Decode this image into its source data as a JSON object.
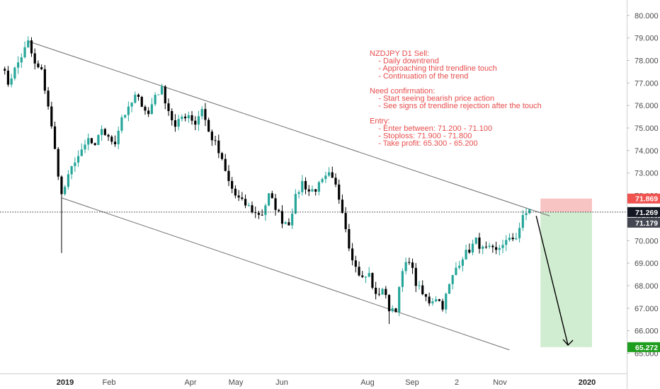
{
  "chart_data": {
    "type": "candlestick",
    "symbol": "NZDJPY",
    "timeframe": "D1",
    "x_tick_labels": [
      "2019",
      "Feb",
      "Apr",
      "May",
      "Jun",
      "Aug",
      "Sep",
      "2",
      "Nov",
      "2020"
    ],
    "y_tick_labels": [
      "65.000",
      "66.000",
      "67.000",
      "68.000",
      "69.000",
      "70.000",
      "71.000",
      "72.000",
      "73.000",
      "74.000",
      "75.000",
      "76.000",
      "77.000",
      "78.000",
      "79.000",
      "80.000"
    ],
    "ylim": [
      64.65,
      80.2
    ],
    "price_path": [
      [
        0,
        77.8
      ],
      [
        2,
        77.0
      ],
      [
        4,
        77.6
      ],
      [
        6,
        78.2
      ],
      [
        8,
        78.8
      ],
      [
        10,
        77.8
      ],
      [
        12,
        77.5
      ],
      [
        14,
        76.0
      ],
      [
        16,
        74.0
      ],
      [
        18,
        72.0
      ],
      [
        20,
        72.8
      ],
      [
        22,
        73.6
      ],
      [
        24,
        73.9
      ],
      [
        26,
        74.5
      ],
      [
        28,
        74.1
      ],
      [
        30,
        75.0
      ],
      [
        32,
        74.5
      ],
      [
        34,
        74.4
      ],
      [
        36,
        75.5
      ],
      [
        38,
        75.8
      ],
      [
        40,
        76.4
      ],
      [
        42,
        76.1
      ],
      [
        44,
        75.6
      ],
      [
        46,
        76.5
      ],
      [
        48,
        76.7
      ],
      [
        50,
        75.8
      ],
      [
        52,
        75.0
      ],
      [
        54,
        75.5
      ],
      [
        56,
        75.6
      ],
      [
        58,
        75.2
      ],
      [
        60,
        75.9
      ],
      [
        62,
        74.8
      ],
      [
        64,
        74.3
      ],
      [
        66,
        73.5
      ],
      [
        68,
        72.6
      ],
      [
        70,
        72.0
      ],
      [
        72,
        71.7
      ],
      [
        74,
        71.5
      ],
      [
        76,
        71.2
      ],
      [
        78,
        71.2
      ],
      [
        80,
        72.0
      ],
      [
        82,
        71.5
      ],
      [
        84,
        70.9
      ],
      [
        86,
        70.8
      ],
      [
        88,
        71.9
      ],
      [
        90,
        72.6
      ],
      [
        92,
        72.2
      ],
      [
        94,
        72.3
      ],
      [
        96,
        72.6
      ],
      [
        98,
        72.9
      ],
      [
        100,
        72.4
      ],
      [
        102,
        71.4
      ],
      [
        104,
        69.8
      ],
      [
        106,
        68.8
      ],
      [
        108,
        68.3
      ],
      [
        110,
        68.5
      ],
      [
        112,
        67.5
      ],
      [
        114,
        67.9
      ],
      [
        116,
        67.0
      ],
      [
        118,
        67.0
      ],
      [
        120,
        68.6
      ],
      [
        122,
        69.2
      ],
      [
        124,
        68.1
      ],
      [
        126,
        67.6
      ],
      [
        128,
        67.3
      ],
      [
        130,
        67.5
      ],
      [
        132,
        67.1
      ],
      [
        134,
        68.0
      ],
      [
        136,
        68.8
      ],
      [
        138,
        69.3
      ],
      [
        140,
        69.6
      ],
      [
        142,
        70.0
      ],
      [
        144,
        69.6
      ],
      [
        146,
        69.6
      ],
      [
        148,
        69.5
      ],
      [
        150,
        69.9
      ],
      [
        152,
        70.0
      ],
      [
        154,
        70.2
      ],
      [
        156,
        71.0
      ],
      [
        158,
        71.4
      ]
    ],
    "wicks": [
      {
        "bar": 18,
        "high": 72.0,
        "low": 69.45
      },
      {
        "bar": 116,
        "high": 67.0,
        "low": 66.3
      }
    ],
    "trendlines": [
      {
        "name": "upper",
        "from": [
          8,
          78.85
        ],
        "to": [
          164,
          71.1
        ]
      },
      {
        "name": "lower",
        "from": [
          18,
          71.9
        ],
        "to": [
          152,
          65.15
        ]
      }
    ],
    "horizontal_line": {
      "price": 71.269,
      "style": "dotted"
    },
    "trade_setup": {
      "entry": 71.269,
      "stop_loss": 71.869,
      "take_profit": 65.272,
      "start_bar": 160,
      "end_bar": 175,
      "arrow_from": [
        160,
        71.1
      ],
      "arrow_to": [
        164,
        65.3
      ]
    },
    "price_labels": [
      {
        "text": "71.869",
        "color": "#f05350",
        "bg": "#f05350"
      },
      {
        "text": "71.269",
        "color": "#131722",
        "bg": "#131722"
      },
      {
        "text": "71.179",
        "color": "#434651",
        "bg": "#434651"
      },
      {
        "text": "65.272",
        "color": "#2a9d2a",
        "bg": "#1e9e1e"
      }
    ],
    "annotation_lines": [
      "NZDJPY D1 Sell:",
      "    - Daily downtrend",
      "    - Approaching third trendline touch",
      "    - Continuation of the trend",
      "",
      "Need confirmation:",
      "    - Start seeing bearish price action",
      "    - See signs of trendline rejection after the touch",
      "",
      "Entry:",
      "    - Enter between: 71.200 - 71.100",
      "    - Stoploss: 71.900 - 71.800",
      "    - Take profit: 65.300 - 65.200"
    ],
    "colors": {
      "up": "#26a69a",
      "down": "#000000",
      "stop_zone": "#f7b9b9",
      "target_zone": "#cfeccf",
      "annotation": "#e84c4c",
      "trendline": "#6e6e6e"
    }
  }
}
